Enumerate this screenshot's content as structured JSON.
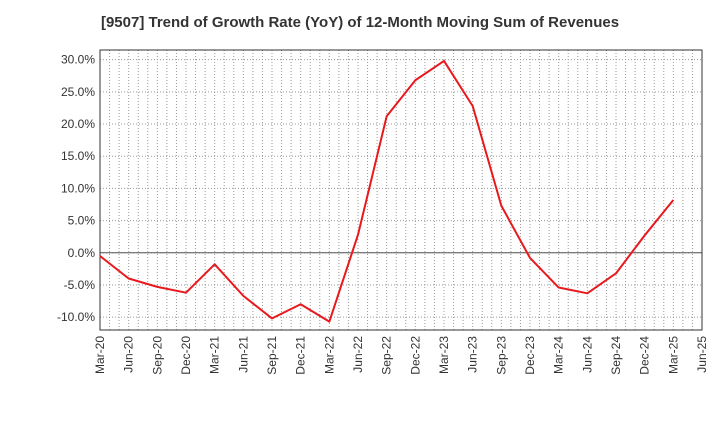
{
  "chart_data": {
    "type": "line",
    "title": "[9507]  Trend of Growth Rate (YoY) of 12-Month Moving Sum of Revenues",
    "xlabel": "",
    "ylabel": "",
    "x_tick_labels": [
      "Mar-20",
      "Jun-20",
      "Sep-20",
      "Dec-20",
      "Mar-21",
      "Jun-21",
      "Sep-21",
      "Dec-21",
      "Mar-22",
      "Jun-22",
      "Sep-22",
      "Dec-22",
      "Mar-23",
      "Jun-23",
      "Sep-23",
      "Dec-23",
      "Mar-24",
      "Jun-24",
      "Sep-24",
      "Dec-24",
      "Mar-25",
      "Jun-25"
    ],
    "y_tick_labels": [
      "-10.0%",
      "-5.0%",
      "0.0%",
      "5.0%",
      "10.0%",
      "15.0%",
      "20.0%",
      "25.0%",
      "30.0%"
    ],
    "y_ticks": [
      -10,
      -5,
      0,
      5,
      10,
      15,
      20,
      25,
      30
    ],
    "ylim": [
      -12,
      31.5
    ],
    "grid": true,
    "series": [
      {
        "color": "#e8191d",
        "x": [
          "Mar-20",
          "Jun-20",
          "Sep-20",
          "Dec-20",
          "Mar-21",
          "Jun-21",
          "Sep-21",
          "Dec-21",
          "Mar-22",
          "Jun-22",
          "Sep-22",
          "Dec-22",
          "Mar-23",
          "Jun-23",
          "Sep-23",
          "Dec-23",
          "Mar-24",
          "Jun-24",
          "Sep-24",
          "Dec-24",
          "Mar-25"
        ],
        "values": [
          -0.5,
          -4.0,
          -5.3,
          -6.2,
          -1.8,
          -6.7,
          -10.2,
          -8.0,
          -10.7,
          2.8,
          21.2,
          26.8,
          29.8,
          22.8,
          7.3,
          -0.8,
          -5.4,
          -6.3,
          -3.2,
          2.7,
          8.2
        ]
      }
    ]
  }
}
